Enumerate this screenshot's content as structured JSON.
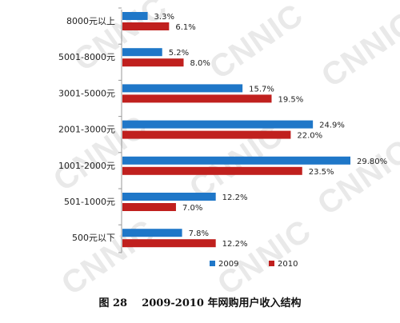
{
  "watermark": "CNNIC",
  "caption": {
    "figure_label": "图 28",
    "text": "2009-2010 年网购用户收入结构"
  },
  "colors": {
    "2009": "#1f77c8",
    "2010": "#c0201e",
    "axis": "#999999"
  },
  "chart_data": {
    "type": "bar",
    "orientation": "horizontal",
    "categories": [
      "8000元以上",
      "5001-8000元",
      "3001-5000元",
      "2001-3000元",
      "1001-2000元",
      "501-1000元",
      "500元以下"
    ],
    "series": [
      {
        "name": "2009",
        "values": [
          3.3,
          5.2,
          15.7,
          24.9,
          29.8,
          12.2,
          7.8
        ],
        "labels": [
          "3.3%",
          "5.2%",
          "15.7%",
          "24.9%",
          "29.80%",
          "12.2%",
          "7.8%"
        ]
      },
      {
        "name": "2010",
        "values": [
          6.1,
          8.0,
          19.5,
          22.0,
          23.5,
          7.0,
          12.2
        ],
        "labels": [
          "6.1%",
          "8.0%",
          "19.5%",
          "22.0%",
          "23.5%",
          "7.0%",
          "12.2%"
        ]
      }
    ],
    "title": "",
    "xlabel": "",
    "ylabel": "",
    "xlim": [
      0,
      35
    ],
    "grid": false,
    "legend": "bottom-center"
  }
}
